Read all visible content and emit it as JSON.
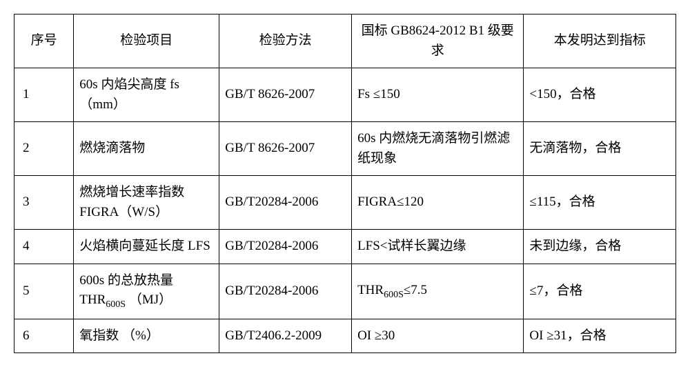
{
  "table": {
    "columns": [
      "序号",
      "检验项目",
      "检验方法",
      "国标 GB8624-2012 B1 级要求",
      "本发明达到指标"
    ],
    "rows": [
      {
        "seq": "1",
        "item": "60s 内焰尖高度 fs（mm）",
        "method": "GB/T 8626-2007",
        "req": "Fs ≤150",
        "result": "<150，合格"
      },
      {
        "seq": "2",
        "item": "燃烧滴落物",
        "method": "GB/T 8626-2007",
        "req": "60s 内燃烧无滴落物引燃滤纸现象",
        "result": "无滴落物，合格"
      },
      {
        "seq": "3",
        "item": "燃烧增长速率指数 FIGRA（W/S）",
        "method": "GB/T20284-2006",
        "req": "FIGRA≤120",
        "result": "≤115，合格"
      },
      {
        "seq": "4",
        "item": "火焰横向蔓延长度 LFS",
        "method": "GB/T20284-2006",
        "req": "LFS<试样长翼边缘",
        "result": "未到边缘，合格"
      },
      {
        "seq": "5",
        "item_html": "600s 的总放热量THR<span class=\"sub\">600S</span> （MJ）",
        "item": "600s 的总放热量THR600S （MJ）",
        "method": "GB/T20284-2006",
        "req_html": "THR<span class=\"sub\">600S</span>≤7.5",
        "req": "THR600S≤7.5",
        "result": "≤7，合格"
      },
      {
        "seq": "6",
        "item": "氧指数 （%）",
        "method": "GB/T2406.2-2009",
        "req": "OI ≥30",
        "result": "OI ≥31，合格"
      }
    ],
    "border_color": "#000000",
    "background_color": "#ffffff",
    "font_size": 19,
    "header_align": "center",
    "cell_align": "left"
  }
}
